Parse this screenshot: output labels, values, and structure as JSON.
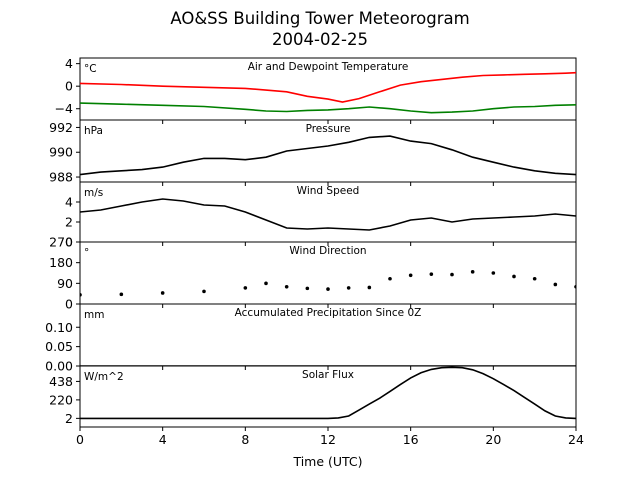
{
  "figure": {
    "title_line1": "AO&SS Building Tower Meteorogram",
    "title_line2": "2004-02-25",
    "xlabel": "Time (UTC)"
  },
  "chart_data": [
    {
      "type": "line",
      "title": "Air and Dewpoint Temperature",
      "unit": "°C",
      "xlim": [
        0,
        24
      ],
      "ylim": [
        -6,
        5
      ],
      "yticks": [
        -4,
        0,
        4
      ],
      "ytick_labels": [
        "−4",
        "0",
        "4"
      ],
      "series": [
        {
          "color": "#ff0000",
          "x": [
            0,
            2,
            4,
            6,
            8,
            10,
            11,
            12,
            12.7,
            13.5,
            14.5,
            15.5,
            16.5,
            17.5,
            18.5,
            19.5,
            20.5,
            21.5,
            22.5,
            23.5,
            24
          ],
          "y": [
            0.5,
            0.3,
            0,
            -0.2,
            -0.4,
            -1,
            -1.8,
            -2.3,
            -2.8,
            -2.2,
            -1,
            0.2,
            0.8,
            1.2,
            1.6,
            1.9,
            2,
            2.1,
            2.2,
            2.3,
            2.4
          ]
        },
        {
          "color": "#008000",
          "x": [
            0,
            2,
            4,
            6,
            8,
            9,
            10,
            11,
            12,
            13,
            14,
            15,
            16,
            17,
            18,
            19,
            20,
            21,
            22,
            23,
            24
          ],
          "y": [
            -3,
            -3.2,
            -3.4,
            -3.6,
            -4.1,
            -4.4,
            -4.5,
            -4.3,
            -4.2,
            -4.0,
            -3.7,
            -4.0,
            -4.4,
            -4.7,
            -4.6,
            -4.4,
            -4.0,
            -3.7,
            -3.6,
            -3.4,
            -3.3
          ]
        }
      ]
    },
    {
      "type": "line",
      "title": "Pressure",
      "unit": "hPa",
      "xlim": [
        0,
        24
      ],
      "ylim": [
        987.6,
        992.6
      ],
      "yticks": [
        988,
        990,
        992
      ],
      "ytick_labels": [
        "988",
        "990",
        "992"
      ],
      "series": [
        {
          "color": "#000000",
          "x": [
            0,
            1,
            2,
            3,
            4,
            5,
            6,
            7,
            8,
            9,
            10,
            11,
            12,
            13,
            14,
            15,
            16,
            17,
            18,
            19,
            20,
            21,
            22,
            23,
            24
          ],
          "y": [
            988.2,
            988.4,
            988.5,
            988.6,
            988.8,
            989.2,
            989.5,
            989.5,
            989.4,
            989.6,
            990.1,
            990.3,
            990.5,
            990.8,
            991.2,
            991.3,
            990.9,
            990.7,
            990.2,
            989.6,
            989.2,
            988.8,
            988.5,
            988.3,
            988.2
          ]
        }
      ]
    },
    {
      "type": "line",
      "title": "Wind Speed",
      "unit": "m/s",
      "xlim": [
        0,
        24
      ],
      "ylim": [
        0,
        6
      ],
      "yticks": [
        0,
        2,
        4
      ],
      "ytick_labels": [
        "0",
        "2",
        "4"
      ],
      "series": [
        {
          "color": "#000000",
          "x": [
            0,
            1,
            2,
            3,
            4,
            5,
            6,
            7,
            8,
            9,
            10,
            11,
            12,
            13,
            14,
            15,
            16,
            17,
            18,
            19,
            20,
            21,
            22,
            23,
            24
          ],
          "y": [
            3,
            3.2,
            3.6,
            4,
            4.3,
            4.1,
            3.7,
            3.6,
            3,
            2.2,
            1.4,
            1.3,
            1.4,
            1.3,
            1.2,
            1.6,
            2.2,
            2.4,
            2.0,
            2.3,
            2.4,
            2.5,
            2.6,
            2.8,
            2.6
          ]
        }
      ]
    },
    {
      "type": "scatter",
      "title": "Wind Direction",
      "unit": "°",
      "xlim": [
        0,
        24
      ],
      "ylim": [
        0,
        270
      ],
      "yticks": [
        0,
        90,
        180,
        270
      ],
      "ytick_labels": [
        "0",
        "90",
        "180",
        "270"
      ],
      "series": [
        {
          "color": "#000000",
          "x": [
            0,
            2,
            4,
            6,
            8,
            9,
            10,
            11,
            12,
            13,
            14,
            15,
            16,
            17,
            18,
            19,
            20,
            21,
            22,
            23,
            24
          ],
          "y": [
            40,
            42,
            48,
            55,
            70,
            90,
            75,
            68,
            65,
            70,
            72,
            110,
            125,
            130,
            128,
            140,
            135,
            120,
            110,
            85,
            75
          ]
        }
      ]
    },
    {
      "type": "line",
      "title": "Accumulated Precipitation Since 0Z",
      "unit": "mm",
      "xlim": [
        0,
        24
      ],
      "ylim": [
        0,
        0.16
      ],
      "yticks": [
        0,
        0.05,
        0.1
      ],
      "ytick_labels": [
        "0.00",
        "0.05",
        "0.10"
      ],
      "series": [
        {
          "color": "#000000",
          "x": [
            0,
            24
          ],
          "y": [
            0,
            0
          ]
        }
      ]
    },
    {
      "type": "line",
      "title": "Solar Flux",
      "unit": "W/m^2",
      "xlim": [
        0,
        24
      ],
      "ylim": [
        -100,
        620
      ],
      "yticks": [
        2,
        220,
        438
      ],
      "ytick_labels": [
        "2",
        "220",
        "438"
      ],
      "series": [
        {
          "color": "#000000",
          "x": [
            0,
            12,
            12.5,
            13,
            13.5,
            14,
            14.5,
            15,
            15.5,
            16,
            16.5,
            17,
            17.5,
            18,
            18.5,
            19,
            19.5,
            20,
            20.5,
            21,
            21.5,
            22,
            22.5,
            23,
            23.5,
            24
          ],
          "y": [
            2,
            2,
            8,
            30,
            100,
            170,
            240,
            320,
            400,
            480,
            540,
            580,
            600,
            605,
            600,
            575,
            530,
            470,
            400,
            330,
            250,
            170,
            90,
            30,
            8,
            2
          ]
        }
      ]
    }
  ],
  "xaxis": {
    "ticks": [
      0,
      4,
      8,
      12,
      16,
      20,
      24
    ],
    "tick_labels": [
      "0",
      "4",
      "8",
      "12",
      "16",
      "20",
      "24"
    ]
  }
}
